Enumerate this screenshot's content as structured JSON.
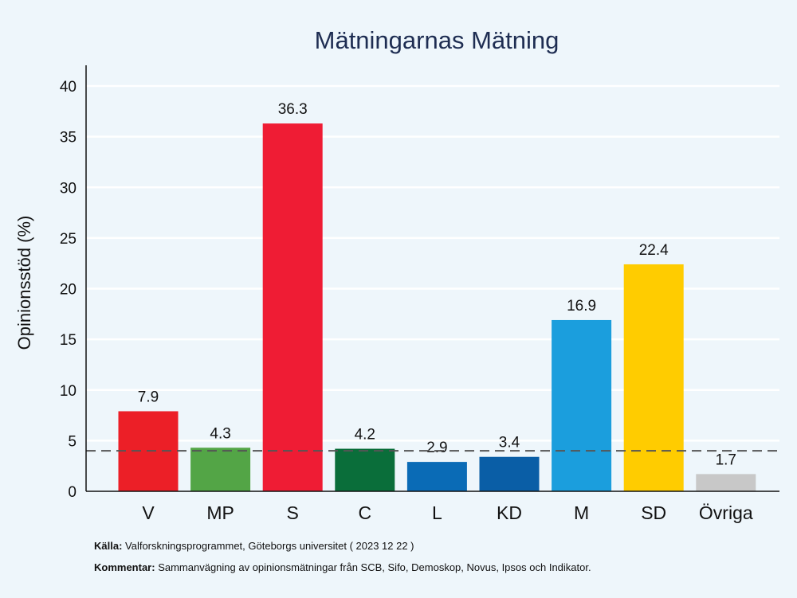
{
  "chart_data": {
    "type": "bar",
    "title": "Mätningarnas Mätning",
    "ylabel": "Opinionsstöd (%)",
    "xlabel": "",
    "ylim": [
      0,
      40
    ],
    "yticks": [
      0,
      5,
      10,
      15,
      20,
      25,
      30,
      35,
      40
    ],
    "threshold": 4,
    "categories": [
      "V",
      "MP",
      "S",
      "C",
      "L",
      "KD",
      "M",
      "SD",
      "Övriga"
    ],
    "values": [
      7.9,
      4.3,
      36.3,
      4.2,
      2.9,
      3.4,
      16.9,
      22.4,
      1.7
    ],
    "value_labels": [
      "7.9",
      "4.3",
      "36.3",
      "4.2",
      "2.9",
      "3.4",
      "16.9",
      "22.4",
      "1.7"
    ],
    "colors": [
      "#ec1f27",
      "#53a546",
      "#ef1c34",
      "#0a6e3a",
      "#0a6bb6",
      "#0a5ea6",
      "#1b9edd",
      "#ffcc00",
      "#c8c8c8"
    ],
    "grid": true
  },
  "footer": {
    "source_label": "Källa:",
    "source_text": " Valforskningsprogrammet, Göteborgs universitet ( 2023 12 22 )",
    "comment_label": "Kommentar:",
    "comment_text": " Sammanvägning av opinionsmätningar från SCB, Sifo, Demoskop, Novus, Ipsos och Indikator."
  }
}
